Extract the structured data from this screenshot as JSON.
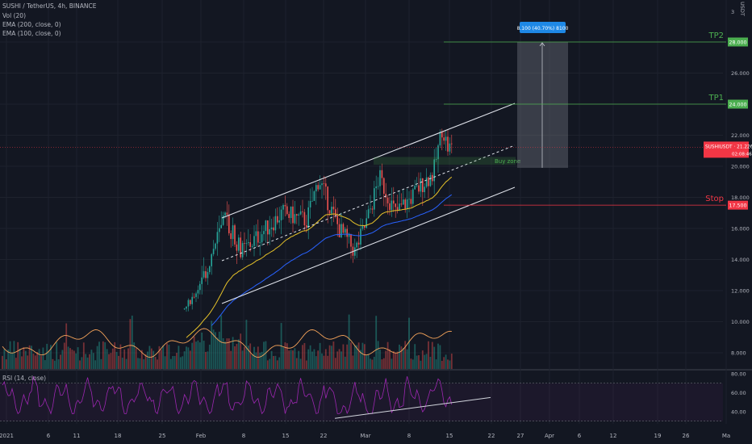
{
  "header": {
    "symbol_line": "SUSHI / TetherUS, 4h, BINANCE",
    "indicators": [
      "Vol (20)",
      "EMA (200, close, 0)",
      "EMA (100, close, 0)"
    ],
    "rsi_label": "RSI (14, close)",
    "unit": "USDT"
  },
  "price_axis": {
    "labels": [
      "28.000",
      "26.000",
      "24.000",
      "22.000",
      "20.000",
      "18.000",
      "16.000",
      "14.000",
      "12.000",
      "10.000",
      "8.000"
    ],
    "top_partial": "3"
  },
  "rsi_axis": {
    "labels": [
      "80.00",
      "60.00",
      "40.00"
    ]
  },
  "time_axis": {
    "labels": [
      "2021",
      "6",
      "11",
      "18",
      "25",
      "Feb",
      "8",
      "15",
      "22",
      "Mar",
      "8",
      "15",
      "22",
      "27",
      "Apr",
      "6",
      "12",
      "19",
      "26",
      "Ma"
    ]
  },
  "trade_setup": {
    "measure_label": "8.100 (40.70%) 8100",
    "tp2_label": "TP2",
    "tp2_price": "28.000",
    "tp1_label": "TP1",
    "tp1_price": "24.000",
    "stop_label": "Stop",
    "stop_price": "17.500",
    "buy_zone_label": "Buy zone",
    "current_symbol": "SUSHIUSDT",
    "current_price": "21.226",
    "countdown": "02:08:46"
  },
  "colors": {
    "background": "#131722",
    "up": "#26a69a",
    "down": "#ef5350",
    "ema200": "#2962ff",
    "ema100": "#e6c229",
    "volume_ma": "#f5a35a",
    "rsi": "#9c27b0",
    "tp": "#4caf50",
    "stop": "#f23645"
  },
  "chart_data": {
    "type": "candlestick",
    "symbol": "SUSHI / TetherUS",
    "interval": "4h",
    "exchange": "BINANCE",
    "price_range": [
      7.5,
      30.5
    ],
    "price_path_approx": {
      "x": [
        "Jan 25",
        "Feb 1",
        "Feb 3",
        "Feb 5",
        "Feb 8",
        "Feb 12",
        "Feb 15",
        "Feb 18",
        "Feb 20",
        "Feb 22",
        "Feb 26",
        "Mar 1",
        "Mar 3",
        "Mar 5",
        "Mar 8",
        "Mar 10",
        "Mar 12",
        "Mar 13",
        "Mar 14",
        "Mar 15"
      ],
      "close": [
        8.5,
        12.5,
        15.5,
        16.6,
        14.5,
        16.0,
        17.0,
        16.5,
        19.2,
        16.0,
        14.5,
        16.5,
        19.3,
        17.0,
        18.0,
        19.0,
        19.5,
        22.5,
        21.2,
        21.2
      ]
    },
    "levels": {
      "tp2": 28.0,
      "tp1": 24.0,
      "stop": 17.5,
      "buy_zone": [
        20.1,
        20.6
      ],
      "current": 21.226
    },
    "projection": {
      "from": 19.9,
      "to": 28.0,
      "change": 8.1,
      "change_pct": 40.7
    },
    "rsi_range": [
      30,
      90
    ]
  }
}
